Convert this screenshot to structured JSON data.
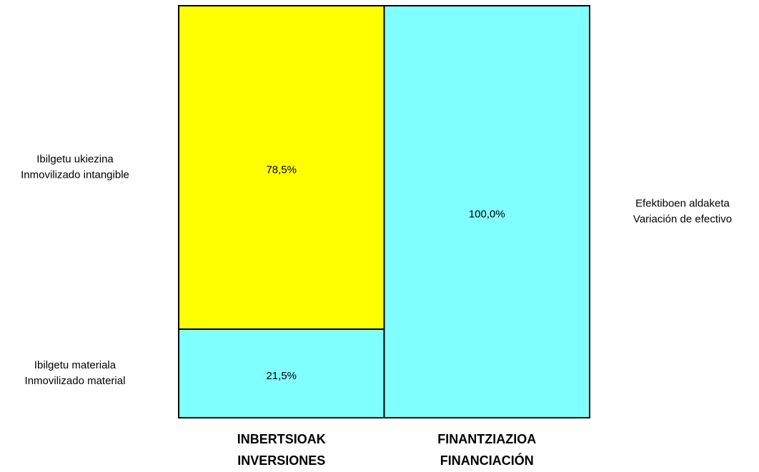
{
  "chart_data": {
    "type": "bar",
    "stacked": true,
    "categories": [
      [
        "INBERTSIOAK",
        "INVERSIONES"
      ],
      [
        "FINANTZIAZIOA",
        "FINANCIACIÓN"
      ]
    ],
    "series": [
      {
        "name": [
          "Ibilgetu materiala",
          "Inmovilizado material"
        ],
        "color": "#80ffff",
        "values": [
          21.5,
          null
        ],
        "value_labels": [
          "21,5%",
          null
        ]
      },
      {
        "name": [
          "Ibilgetu ukiezina",
          "Inmovilizado intangible"
        ],
        "color": "#ffff00",
        "values": [
          78.5,
          null
        ],
        "value_labels": [
          "78,5%",
          null
        ]
      },
      {
        "name": [
          "Efektiboen aldaketa",
          "Variación de efectivo"
        ],
        "color": "#80ffff",
        "values": [
          null,
          100
        ],
        "value_labels": [
          null,
          "100,0%"
        ]
      }
    ],
    "ylim": [
      0,
      100
    ]
  }
}
